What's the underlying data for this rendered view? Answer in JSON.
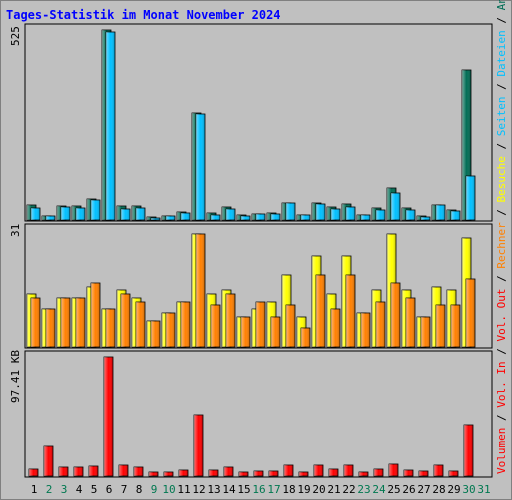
{
  "colors": {
    "background": "#c0c0c0",
    "title": "#0000ff",
    "anfragen": "#006c54",
    "dateien": "#00c0ff",
    "seiten": "#00c0ff",
    "besuche": "#ffff00",
    "rechner": "#ff8000",
    "volumen": "#ff0000",
    "volumen_in": "#ff0000",
    "volumen_out": "#ff0000",
    "weekday": "#000000",
    "weekend": "#007850"
  },
  "chart_data": {
    "type": "bar",
    "title": "Tages-Statistik im Monat November 2024",
    "categories": [
      "1",
      "2",
      "3",
      "4",
      "5",
      "6",
      "7",
      "8",
      "9",
      "10",
      "11",
      "12",
      "13",
      "14",
      "15",
      "16",
      "17",
      "18",
      "19",
      "20",
      "21",
      "22",
      "23",
      "24",
      "25",
      "26",
      "27",
      "28",
      "29",
      "30",
      "31"
    ],
    "weekend_days": [
      "2",
      "3",
      "9",
      "10",
      "16",
      "17",
      "23",
      "24",
      "30",
      "31"
    ],
    "panels": [
      {
        "id": "top",
        "max_label": "525",
        "ylim": [
          0,
          525
        ],
        "series": [
          {
            "name": "Anfragen",
            "values": [
              40,
              11,
              39,
              38,
              57,
              522,
              39,
              38,
              8,
              11,
              22,
              295,
              18,
              35,
              14,
              17,
              19,
              48,
              15,
              46,
              35,
              43,
              15,
              32,
              88,
              32,
              11,
              42,
              28,
              412,
              0
            ]
          },
          {
            "name": "Dateien",
            "values": [
              32,
              10,
              35,
              34,
              56,
              518,
              30,
              32,
              6,
              10,
              18,
              290,
              15,
              31,
              12,
              16,
              17,
              46,
              14,
              43,
              29,
              35,
              13,
              28,
              74,
              28,
              9,
              41,
              26,
              122,
              0
            ]
          }
        ],
        "legend_labels": [
          "Anfragen",
          "Dateien",
          "Seiten"
        ]
      },
      {
        "id": "middle",
        "max_label": "31",
        "ylim": [
          0,
          31
        ],
        "series": [
          {
            "name": "Besuche",
            "values": [
              14,
              10,
              13,
              13,
              16,
              10,
              15,
              13,
              7,
              9,
              12,
              30,
              14,
              15,
              8,
              10,
              12,
              19,
              8,
              24,
              14,
              24,
              9,
              15,
              30,
              15,
              8,
              16,
              15,
              29,
              0
            ]
          },
          {
            "name": "Rechner",
            "values": [
              13,
              10,
              13,
              13,
              17,
              10,
              14,
              12,
              7,
              9,
              12,
              30,
              11,
              14,
              8,
              12,
              8,
              11,
              5,
              19,
              10,
              19,
              9,
              12,
              17,
              13,
              8,
              11,
              11,
              18,
              0
            ]
          }
        ],
        "legend_labels": [
          "Besuche",
          "Rechner",
          "Vol. Out"
        ]
      },
      {
        "id": "bottom",
        "max_label": "97.41 KB",
        "ylim": [
          0,
          97.41
        ],
        "series": [
          {
            "name": "Volumen",
            "values": [
              6,
              24,
              7,
              7,
              8,
              96,
              9,
              7,
              3,
              3,
              5,
              49,
              5,
              7,
              3,
              4,
              4,
              9,
              3,
              9,
              6,
              9,
              3,
              6,
              10,
              5,
              4,
              9,
              4,
              41,
              0
            ]
          }
        ],
        "legend_labels": [
          "Vol. In",
          "Volumen"
        ]
      }
    ]
  }
}
